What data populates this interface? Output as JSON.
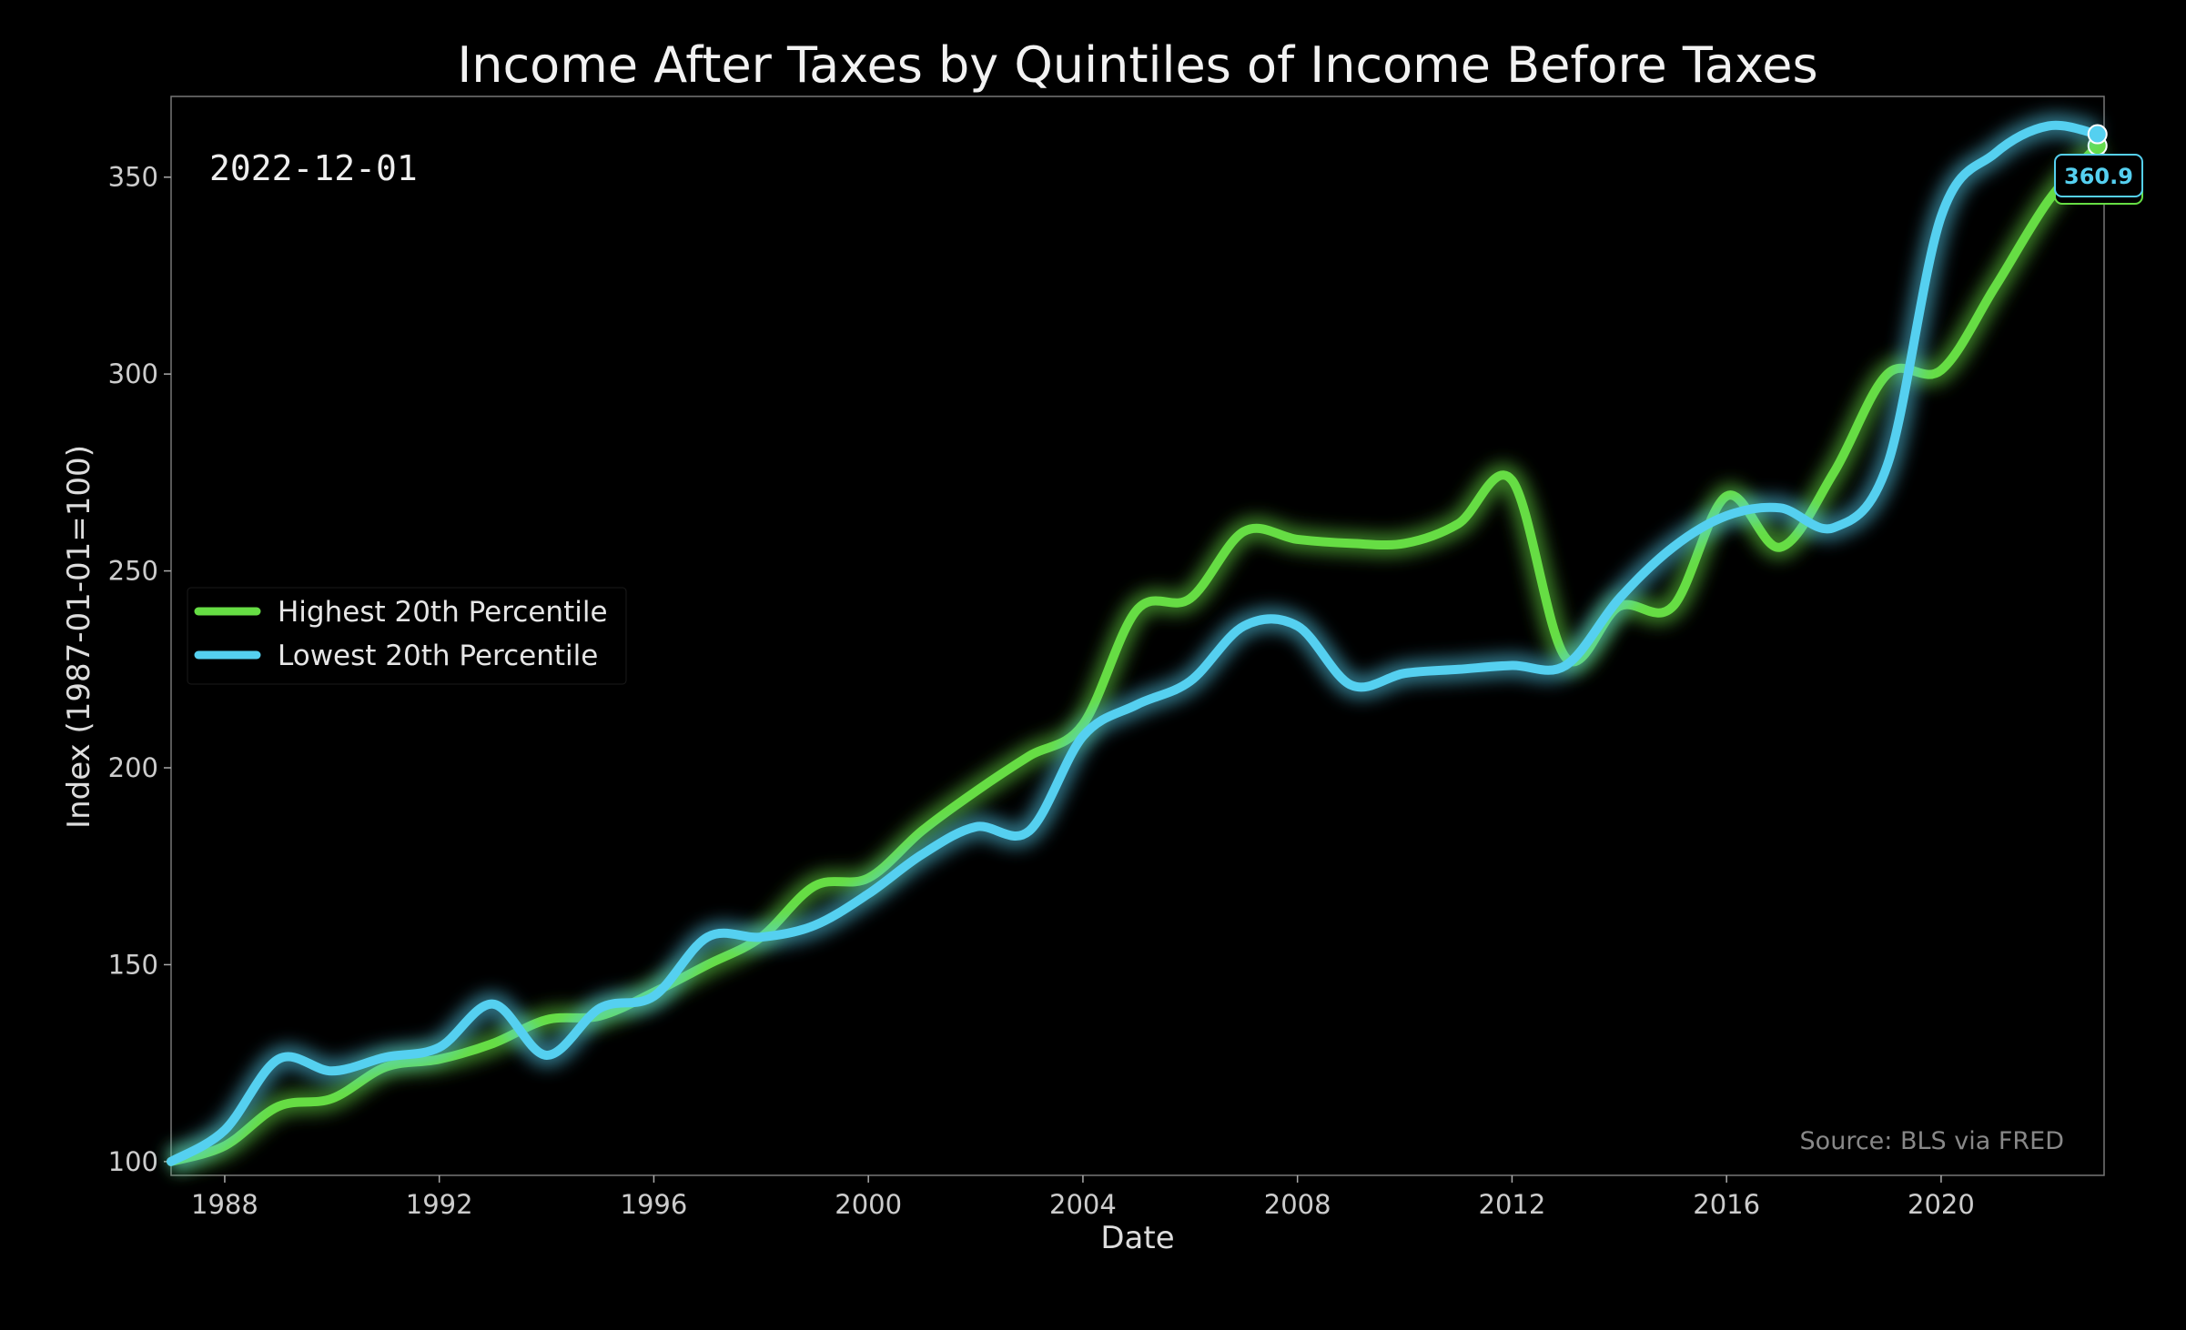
{
  "chart_data": {
    "type": "line",
    "title": "Income After Taxes by Quintiles of Income Before Taxes",
    "xlabel": "Date",
    "ylabel": "Index (1987-01-01=100)",
    "xlim": [
      "1987-01-01",
      "2023-01-15"
    ],
    "ylim": [
      96.5,
      370.5
    ],
    "x_ticks": [
      "1988",
      "1992",
      "1996",
      "2000",
      "2004",
      "2008",
      "2012",
      "2016",
      "2020"
    ],
    "y_ticks": [
      100,
      150,
      200,
      250,
      300,
      350
    ],
    "grid": false,
    "legend_position": "center-left",
    "current_date_label": "2022-12-01",
    "source_note": "Source: BLS via FRED",
    "end_value_label": "360.9",
    "dates": [
      "1987-01-01",
      "1988-01-01",
      "1989-01-01",
      "1990-01-01",
      "1991-01-01",
      "1992-01-01",
      "1993-01-01",
      "1994-01-01",
      "1995-01-01",
      "1996-01-01",
      "1997-01-01",
      "1998-01-01",
      "1999-01-01",
      "2000-01-01",
      "2001-01-01",
      "2002-01-01",
      "2003-01-01",
      "2004-01-01",
      "2005-01-01",
      "2006-01-01",
      "2007-01-01",
      "2008-01-01",
      "2009-01-01",
      "2010-01-01",
      "2011-01-01",
      "2012-01-01",
      "2013-01-01",
      "2014-01-01",
      "2015-01-01",
      "2016-01-01",
      "2017-01-01",
      "2018-01-01",
      "2019-01-01",
      "2020-01-01",
      "2021-01-01",
      "2022-01-01",
      "2022-12-01"
    ],
    "series": [
      {
        "name": "Highest 20th Percentile",
        "color": "#66dd44",
        "values": [
          100,
          104,
          114,
          116,
          124,
          126,
          130,
          136,
          137,
          143,
          150,
          157,
          170,
          172,
          184,
          194,
          203,
          211,
          240,
          243,
          260,
          258,
          257,
          257,
          262,
          273,
          228,
          241,
          241,
          269,
          256,
          275,
          300,
          301,
          322,
          344,
          358
        ]
      },
      {
        "name": "Lowest 20th Percentile",
        "color": "#55d0f0",
        "values": [
          100,
          108,
          126,
          123,
          126.5,
          129,
          140,
          127,
          139,
          142,
          157,
          157,
          160,
          168,
          178,
          185,
          184,
          208,
          216,
          222,
          236,
          236,
          221,
          224,
          225,
          226,
          226,
          243,
          256,
          264,
          266,
          261,
          277,
          340,
          356,
          363,
          360.9
        ]
      }
    ]
  }
}
